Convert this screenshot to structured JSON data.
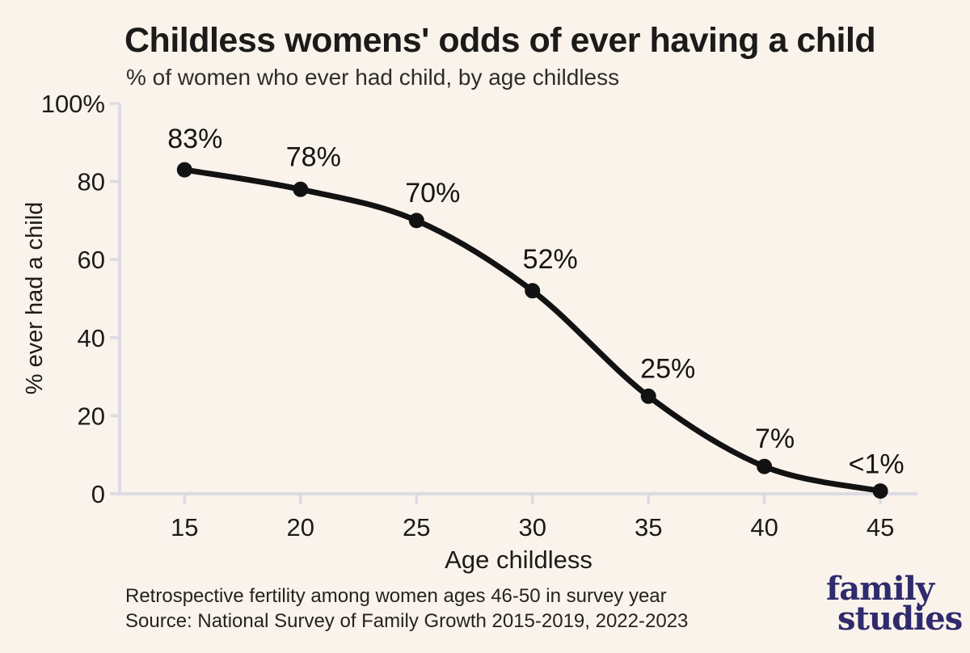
{
  "page": {
    "background": "#faf3ec"
  },
  "header": {
    "title": "Childless womens' odds of ever having a child",
    "subtitle": "% of women who ever had child, by age childless"
  },
  "footer": {
    "note": "Retrospective fertility among women ages 46-50 in survey year",
    "source": "Source: National Survey of Family Growth 2015-2019, 2022-2023"
  },
  "logo": {
    "line1": "family",
    "line2": "studies",
    "color": "#2f2b6d"
  },
  "chart_data": {
    "type": "line",
    "title": "Childless womens' odds of ever having a child",
    "subtitle": "% of women who ever had child, by age childless",
    "xlabel": "Age childless",
    "ylabel": "% ever had a child",
    "x": [
      15,
      20,
      25,
      30,
      35,
      40,
      45
    ],
    "values": [
      83,
      78,
      70,
      52,
      25,
      7,
      0.7
    ],
    "point_labels": [
      "83%",
      "78%",
      "70%",
      "52%",
      "25%",
      "7%",
      "<1%"
    ],
    "xticks": [
      15,
      20,
      25,
      30,
      35,
      40,
      45
    ],
    "xtick_labels": [
      "15",
      "20",
      "25",
      "30",
      "35",
      "40",
      "45"
    ],
    "yticks": [
      0,
      20,
      40,
      60,
      80,
      100
    ],
    "ytick_labels": [
      "0",
      "20",
      "40",
      "60",
      "80",
      "100%"
    ],
    "xlim": [
      12.2,
      46.6
    ],
    "ylim": [
      0,
      100
    ],
    "grid": false,
    "legend": false,
    "line_color": "#121212",
    "marker_color": "#121212",
    "axis_color": "#dcdbe3",
    "text_color": "#1c1b1a",
    "label_dx": [
      13,
      16,
      20,
      22,
      24,
      13,
      -5
    ],
    "label_dy": [
      -39,
      -41,
      -35,
      -40,
      -35,
      -35,
      -34
    ]
  }
}
